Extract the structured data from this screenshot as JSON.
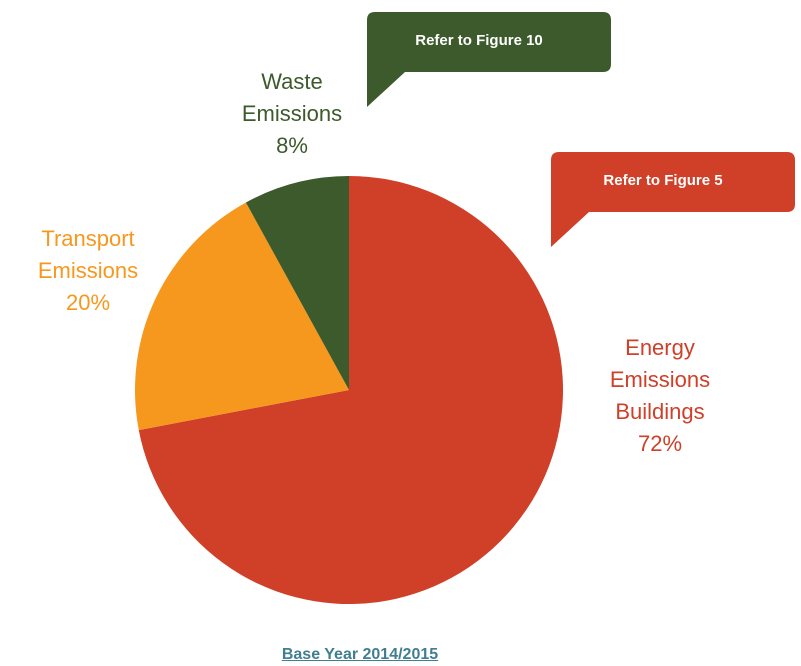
{
  "chart_data": {
    "type": "pie",
    "title": "Base Year 2014/2015",
    "categories": [
      "Energy Emissions Buildings",
      "Transport Emissions",
      "Waste Emissions"
    ],
    "values": [
      72,
      20,
      8
    ],
    "value_labels": [
      "72%",
      "20%",
      "8%"
    ],
    "colors": [
      "#d03f27",
      "#f7981e",
      "#3c5a2b"
    ],
    "annotations": [
      {
        "text": "Refer to Figure 10",
        "color": "#3c5a2b"
      },
      {
        "text": "Refer to Figure 5",
        "color": "#d03f27"
      }
    ]
  }
}
